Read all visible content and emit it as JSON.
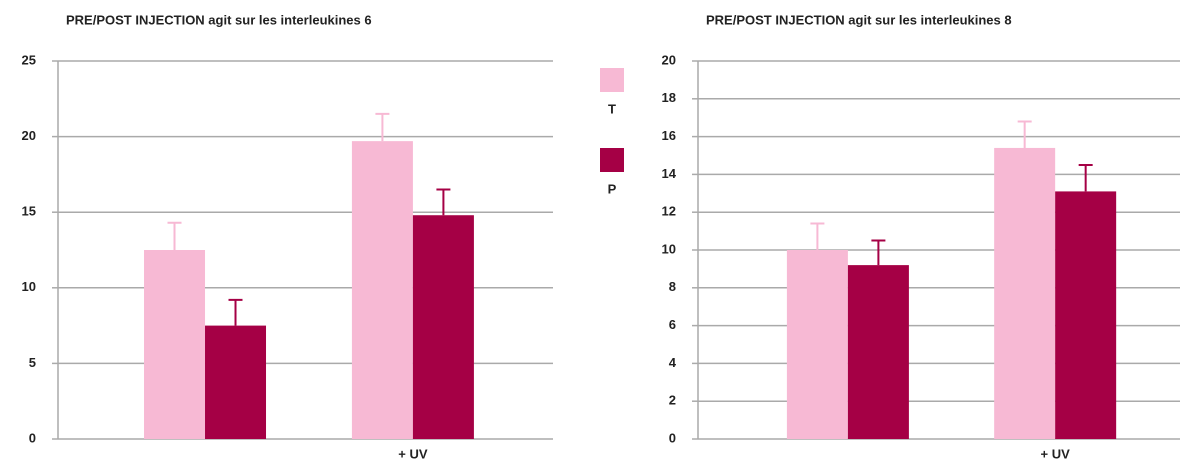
{
  "chart_data": [
    {
      "type": "bar",
      "title": "PRE/POST INJECTION agit sur les interleukines 6",
      "categories": [
        null,
        "+ UV"
      ],
      "series": [
        {
          "name": "T",
          "color": "#f7b9d4",
          "values": [
            12.5,
            19.7
          ],
          "errors": [
            1.8,
            1.8
          ]
        },
        {
          "name": "P",
          "color": "#a50045",
          "values": [
            7.5,
            14.8
          ],
          "errors": [
            1.7,
            1.7
          ]
        }
      ],
      "ylim": [
        0,
        25
      ],
      "yticks": [
        0,
        5,
        10,
        15,
        20,
        25
      ],
      "grid": true
    },
    {
      "type": "bar",
      "title": "PRE/POST INJECTION agit sur les interleukines 8",
      "categories": [
        null,
        "+ UV"
      ],
      "series": [
        {
          "name": "T",
          "color": "#f7b9d4",
          "values": [
            10,
            15.4
          ],
          "errors": [
            1.4,
            1.4
          ]
        },
        {
          "name": "P",
          "color": "#a50045",
          "values": [
            9.2,
            13.1
          ],
          "errors": [
            1.3,
            1.4
          ]
        }
      ],
      "ylim": [
        0,
        20
      ],
      "yticks": [
        0,
        2,
        4,
        6,
        8,
        10,
        12,
        14,
        16,
        18,
        20
      ],
      "grid": true
    }
  ]
}
